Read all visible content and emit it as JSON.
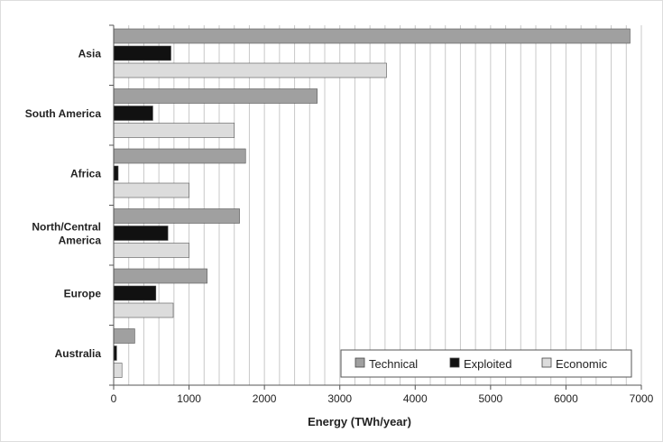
{
  "chart_data": {
    "type": "bar",
    "orientation": "horizontal",
    "categories": [
      "Asia",
      "South America",
      "Africa",
      "North/Central America",
      "Europe",
      "Australia"
    ],
    "category_label_lines": [
      [
        "Asia"
      ],
      [
        "South America"
      ],
      [
        "Africa"
      ],
      [
        "North/Central",
        "America"
      ],
      [
        "Europe"
      ],
      [
        "Australia"
      ]
    ],
    "series": [
      {
        "name": "Technical",
        "values": [
          6850,
          2700,
          1750,
          1670,
          1240,
          280
        ]
      },
      {
        "name": "Exploited",
        "values": [
          760,
          520,
          60,
          720,
          560,
          40
        ]
      },
      {
        "name": "Economic",
        "values": [
          3620,
          1600,
          1000,
          1000,
          790,
          110
        ]
      }
    ],
    "xlabel": "Energy (TWh/year)",
    "ylabel": "",
    "title": "",
    "xlim": [
      0,
      7000
    ],
    "xticks": [
      0,
      1000,
      2000,
      3000,
      4000,
      5000,
      6000,
      7000
    ],
    "gridline_step": 200,
    "grid": true,
    "legend_position": "bottom-right"
  },
  "colors": {
    "technical": "#a0a0a0",
    "exploited": "#111111",
    "economic": "#dcdcdc",
    "grid": "#c8c8c8",
    "axis": "#555555"
  }
}
